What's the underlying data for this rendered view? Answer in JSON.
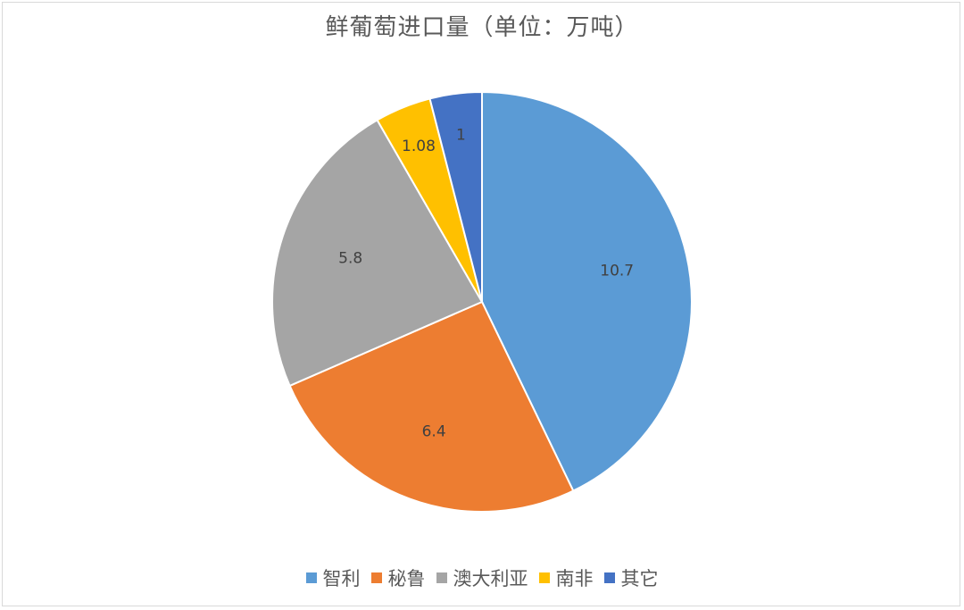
{
  "chart_data": {
    "type": "pie",
    "title": "鲜葡萄进口量（单位：万吨）",
    "categories": [
      "智利",
      "秘鲁",
      "澳大利亚",
      "南非",
      "其它"
    ],
    "values": [
      10.7,
      6.4,
      5.8,
      1.08,
      1
    ],
    "value_labels": [
      "10.7",
      "6.4",
      "5.8",
      "1.08",
      "1"
    ],
    "colors": [
      "#5B9BD5",
      "#ED7D31",
      "#A5A5A5",
      "#FFC000",
      "#4472C4"
    ],
    "legend_position": "bottom",
    "start_angle_deg": 0,
    "direction": "clockwise"
  }
}
